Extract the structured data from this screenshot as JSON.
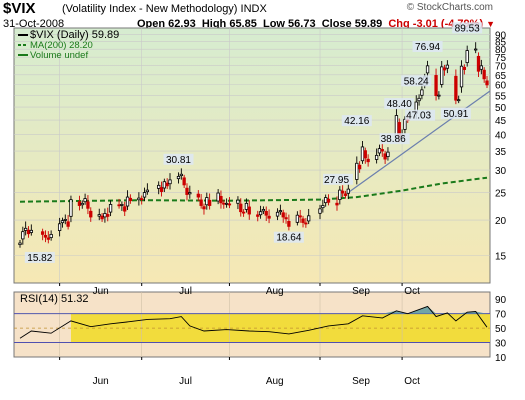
{
  "header": {
    "symbol": "$VIX",
    "subtitle": "(Volatility Index - New Methodology)  INDX",
    "date": "31-Oct-2008",
    "open": "Open 62.93",
    "high": "High 65.85",
    "low": "Low 56.73",
    "close": "Close 59.89",
    "chg": "Chg -3.01 (-4.79%)",
    "brand": "© StockCharts.com"
  },
  "colors": {
    "up_candle": "#000000",
    "down_candle": "#cc0000",
    "ma_line": "#1a7a1a",
    "trendline": "#6b7fae",
    "rsi_fill": "#f2dc3c",
    "rsi_band": "#5050b0"
  },
  "chart_data": [
    {
      "type": "candlestick",
      "legend": [
        "$VIX (Daily) 59.89",
        "MA(200) 28.20",
        "Volume undef"
      ],
      "months": [
        "Jun",
        "Jul",
        "Aug",
        "Sep",
        "Oct"
      ],
      "ylim": [
        12,
        95
      ],
      "log_scale": true,
      "yticks": [
        15,
        20,
        25,
        30,
        35,
        40,
        45,
        50,
        55,
        60,
        65,
        70,
        75,
        80,
        85,
        90
      ],
      "annotations": [
        "15.82",
        "30.81",
        "18.64",
        "27.95",
        "42.16",
        "38.86",
        "47.03",
        "48.40",
        "58.24",
        "76.94",
        "50.91",
        "89.53"
      ],
      "close_series": [
        [
          "2008-05-19",
          16.6
        ],
        [
          "2008-05-20",
          18.2
        ],
        [
          "2008-05-21",
          18.7
        ],
        [
          "2008-05-22",
          17.9
        ],
        [
          "2008-05-23",
          18.4
        ],
        [
          "2008-05-27",
          17.8
        ],
        [
          "2008-05-28",
          17.4
        ],
        [
          "2008-05-29",
          17.1
        ],
        [
          "2008-05-30",
          17.8
        ],
        [
          "2008-06-02",
          19.4
        ],
        [
          "2008-06-03",
          19.9
        ],
        [
          "2008-06-04",
          20.1
        ],
        [
          "2008-06-05",
          19.0
        ],
        [
          "2008-06-06",
          23.6
        ],
        [
          "2008-06-09",
          22.5
        ],
        [
          "2008-06-10",
          22.9
        ],
        [
          "2008-06-11",
          23.8
        ],
        [
          "2008-06-12",
          22.0
        ],
        [
          "2008-06-13",
          20.5
        ],
        [
          "2008-06-16",
          20.9
        ],
        [
          "2008-06-17",
          20.2
        ],
        [
          "2008-06-18",
          21.1
        ],
        [
          "2008-06-19",
          20.6
        ],
        [
          "2008-06-20",
          22.7
        ],
        [
          "2008-06-23",
          22.5
        ],
        [
          "2008-06-24",
          22.7
        ],
        [
          "2008-06-25",
          21.5
        ],
        [
          "2008-06-26",
          24.1
        ],
        [
          "2008-06-27",
          23.4
        ],
        [
          "2008-06-30",
          23.9
        ],
        [
          "2008-07-01",
          23.6
        ],
        [
          "2008-07-02",
          25.0
        ],
        [
          "2008-07-03",
          25.5
        ],
        [
          "2008-07-07",
          26.5
        ],
        [
          "2008-07-08",
          25.2
        ],
        [
          "2008-07-09",
          27.3
        ],
        [
          "2008-07-10",
          26.4
        ],
        [
          "2008-07-11",
          27.7
        ],
        [
          "2008-07-14",
          28.5
        ],
        [
          "2008-07-15",
          29.0
        ],
        [
          "2008-07-16",
          26.6
        ],
        [
          "2008-07-17",
          24.6
        ],
        [
          "2008-07-18",
          25.0
        ],
        [
          "2008-07-21",
          24.1
        ],
        [
          "2008-07-22",
          22.5
        ],
        [
          "2008-07-23",
          21.9
        ],
        [
          "2008-07-24",
          24.0
        ],
        [
          "2008-07-25",
          22.5
        ],
        [
          "2008-07-28",
          24.9
        ],
        [
          "2008-07-29",
          23.0
        ],
        [
          "2008-07-30",
          22.8
        ],
        [
          "2008-07-31",
          22.9
        ],
        [
          "2008-08-01",
          22.6
        ],
        [
          "2008-08-04",
          23.5
        ],
        [
          "2008-08-05",
          21.4
        ],
        [
          "2008-08-06",
          21.2
        ],
        [
          "2008-08-07",
          22.9
        ],
        [
          "2008-08-08",
          21.0
        ],
        [
          "2008-08-11",
          20.6
        ],
        [
          "2008-08-12",
          21.4
        ],
        [
          "2008-08-13",
          21.8
        ],
        [
          "2008-08-14",
          20.8
        ],
        [
          "2008-08-15",
          20.3
        ],
        [
          "2008-08-18",
          21.3
        ],
        [
          "2008-08-19",
          21.6
        ],
        [
          "2008-08-20",
          20.5
        ],
        [
          "2008-08-21",
          20.2
        ],
        [
          "2008-08-22",
          19.0
        ],
        [
          "2008-08-25",
          20.8
        ],
        [
          "2008-08-26",
          20.5
        ],
        [
          "2008-08-27",
          19.6
        ],
        [
          "2008-08-28",
          19.4
        ],
        [
          "2008-08-29",
          20.7
        ],
        [
          "2008-09-02",
          21.9
        ],
        [
          "2008-09-03",
          22.5
        ],
        [
          "2008-09-04",
          24.0
        ],
        [
          "2008-09-05",
          23.1
        ],
        [
          "2008-09-08",
          22.6
        ],
        [
          "2008-09-09",
          25.5
        ],
        [
          "2008-09-10",
          24.9
        ],
        [
          "2008-09-11",
          24.4
        ],
        [
          "2008-09-12",
          25.7
        ],
        [
          "2008-09-15",
          31.7
        ],
        [
          "2008-09-16",
          30.3
        ],
        [
          "2008-09-17",
          36.2
        ],
        [
          "2008-09-18",
          33.1
        ],
        [
          "2008-09-19",
          32.1
        ],
        [
          "2008-09-22",
          33.8
        ],
        [
          "2008-09-23",
          35.7
        ],
        [
          "2008-09-24",
          35.0
        ],
        [
          "2008-09-25",
          32.8
        ],
        [
          "2008-09-26",
          34.7
        ],
        [
          "2008-09-29",
          46.7
        ],
        [
          "2008-09-30",
          39.4
        ],
        [
          "2008-10-01",
          39.8
        ],
        [
          "2008-10-02",
          45.3
        ],
        [
          "2008-10-03",
          45.1
        ],
        [
          "2008-10-06",
          52.1
        ],
        [
          "2008-10-07",
          53.7
        ],
        [
          "2008-10-08",
          57.5
        ],
        [
          "2008-10-09",
          63.9
        ],
        [
          "2008-10-10",
          69.9
        ],
        [
          "2008-10-13",
          54.9
        ],
        [
          "2008-10-14",
          55.1
        ],
        [
          "2008-10-15",
          69.3
        ],
        [
          "2008-10-16",
          67.6
        ],
        [
          "2008-10-17",
          70.3
        ],
        [
          "2008-10-20",
          52.9
        ],
        [
          "2008-10-21",
          53.1
        ],
        [
          "2008-10-22",
          69.7
        ],
        [
          "2008-10-23",
          67.8
        ],
        [
          "2008-10-24",
          79.1
        ],
        [
          "2008-10-27",
          80.1
        ],
        [
          "2008-10-28",
          66.9
        ],
        [
          "2008-10-29",
          69.9
        ],
        [
          "2008-10-30",
          62.9
        ],
        [
          "2008-10-31",
          59.89
        ]
      ],
      "ma200_series": [
        [
          "2008-05-19",
          23.2
        ],
        [
          "2008-06-02",
          23.3
        ],
        [
          "2008-07-01",
          23.5
        ],
        [
          "2008-08-01",
          23.4
        ],
        [
          "2008-09-02",
          23.6
        ],
        [
          "2008-09-15",
          24.1
        ],
        [
          "2008-10-01",
          25.4
        ],
        [
          "2008-10-15",
          26.9
        ],
        [
          "2008-10-31",
          28.2
        ]
      ]
    },
    {
      "type": "line",
      "legend": [
        "RSI(14) 51.32"
      ],
      "ylim": [
        10,
        100
      ],
      "yticks": [
        10,
        30,
        50,
        70,
        90
      ],
      "bands": [
        30,
        70
      ],
      "rsi_series": [
        [
          "2008-05-19",
          36
        ],
        [
          "2008-05-23",
          46
        ],
        [
          "2008-05-30",
          43
        ],
        [
          "2008-06-06",
          60
        ],
        [
          "2008-06-13",
          52
        ],
        [
          "2008-06-20",
          56
        ],
        [
          "2008-06-27",
          59
        ],
        [
          "2008-07-03",
          62
        ],
        [
          "2008-07-11",
          63
        ],
        [
          "2008-07-15",
          66
        ],
        [
          "2008-07-18",
          53
        ],
        [
          "2008-07-23",
          46
        ],
        [
          "2008-07-31",
          48
        ],
        [
          "2008-08-08",
          46
        ],
        [
          "2008-08-15",
          45
        ],
        [
          "2008-08-22",
          42
        ],
        [
          "2008-08-29",
          47
        ],
        [
          "2008-09-05",
          53
        ],
        [
          "2008-09-12",
          56
        ],
        [
          "2008-09-17",
          67
        ],
        [
          "2008-09-24",
          64
        ],
        [
          "2008-09-29",
          74
        ],
        [
          "2008-10-03",
          70
        ],
        [
          "2008-10-10",
          80
        ],
        [
          "2008-10-13",
          66
        ],
        [
          "2008-10-17",
          71
        ],
        [
          "2008-10-20",
          60
        ],
        [
          "2008-10-24",
          72
        ],
        [
          "2008-10-27",
          73
        ],
        [
          "2008-10-31",
          51.32
        ]
      ]
    }
  ]
}
